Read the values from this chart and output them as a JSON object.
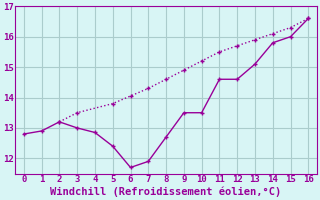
{
  "xlabel": "Windchill (Refroidissement éolien,°C)",
  "x_line1": [
    0,
    1,
    2,
    3,
    4,
    5,
    6,
    7,
    8,
    9,
    10,
    11,
    12,
    13,
    14,
    15,
    16
  ],
  "y_line1": [
    12.8,
    12.9,
    13.2,
    13.0,
    12.85,
    12.4,
    11.7,
    11.9,
    12.7,
    13.5,
    13.5,
    14.6,
    14.6,
    15.1,
    15.8,
    16.0,
    16.6
  ],
  "x_line2": [
    2,
    3,
    5,
    6,
    7,
    8,
    9,
    10,
    11,
    12,
    13,
    14,
    15,
    16
  ],
  "y_line2": [
    13.2,
    13.5,
    13.8,
    14.05,
    14.3,
    14.6,
    14.9,
    15.2,
    15.5,
    15.7,
    15.9,
    16.1,
    16.3,
    16.6
  ],
  "color": "#990099",
  "bg_color": "#d8f5f5",
  "grid_color": "#aacccc",
  "xlim": [
    -0.5,
    16.5
  ],
  "ylim": [
    11.5,
    17.0
  ],
  "xticks": [
    0,
    1,
    2,
    3,
    4,
    5,
    6,
    7,
    8,
    9,
    10,
    11,
    12,
    13,
    14,
    15,
    16
  ],
  "yticks": [
    12,
    13,
    14,
    15,
    16,
    17
  ],
  "tick_fontsize": 6.5,
  "xlabel_fontsize": 7.5,
  "line_width": 1.0
}
